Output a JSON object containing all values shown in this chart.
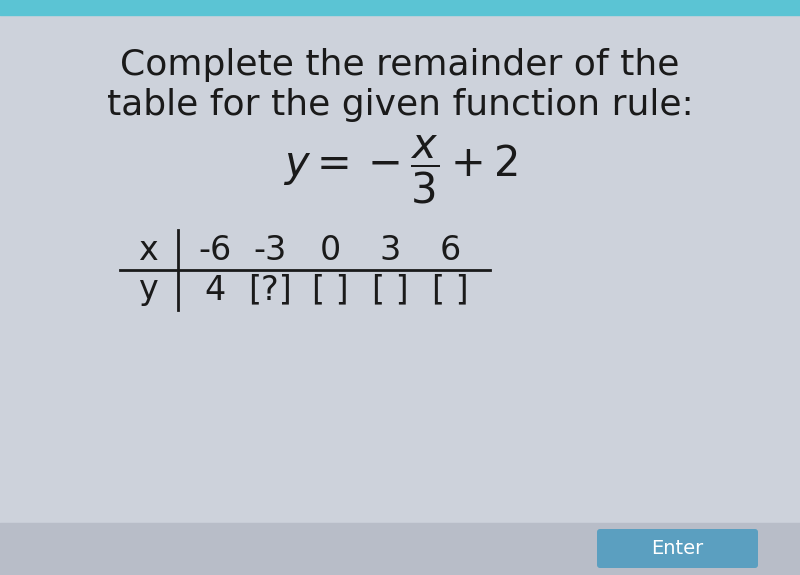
{
  "title_line1": "Complete the remainder of the",
  "title_line2": "table for the given function rule:",
  "background_color": "#cdd2db",
  "text_color": "#1a1a1a",
  "title_fontsize": 26,
  "table_fontsize": 24,
  "x_values": [
    "-6",
    "-3",
    "0",
    "3",
    "6"
  ],
  "y_values": [
    "4",
    "[?]",
    "[ ]",
    "[ ]",
    "[ ]"
  ],
  "enter_button_color": "#5b9fc0",
  "enter_text": "Enter",
  "top_border_color": "#5bc4d4",
  "bottom_bar_color": "#b8bdc8"
}
